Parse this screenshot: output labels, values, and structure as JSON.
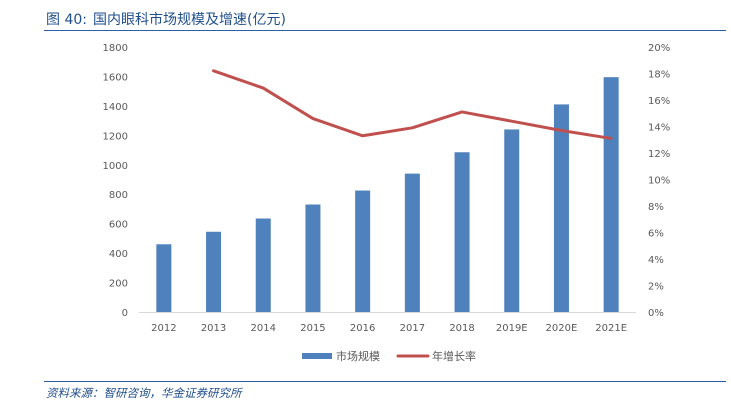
{
  "figure": {
    "number": "图 40:",
    "title": "国内眼科市场规模及增速(亿元)",
    "source": "资料来源：智研咨询，华金证券研究所"
  },
  "colors": {
    "bar": "#4f81bd",
    "line": "#c0504d",
    "axis_text": "#595959",
    "axis_line": "#d9d9d9",
    "title": "#1f4e8c"
  },
  "chart_data": {
    "type": "bar",
    "title": "国内眼科市场规模及增速(亿元)",
    "categories": [
      "2012",
      "2013",
      "2014",
      "2015",
      "2016",
      "2017",
      "2018",
      "2019E",
      "2020E",
      "2021E"
    ],
    "series": [
      {
        "name": "市场规模",
        "type": "bar",
        "axis": "left",
        "values": [
          460,
          545,
          635,
          730,
          825,
          940,
          1085,
          1240,
          1410,
          1595
        ]
      },
      {
        "name": "年增长率",
        "type": "line",
        "axis": "right",
        "values": [
          null,
          18.2,
          16.9,
          14.6,
          13.3,
          13.9,
          15.1,
          14.4,
          13.7,
          13.1
        ]
      }
    ],
    "left_axis": {
      "ylim": [
        0,
        1800
      ],
      "ticks": [
        0,
        200,
        400,
        600,
        800,
        1000,
        1200,
        1400,
        1600,
        1800
      ],
      "tick_labels": [
        "0",
        "200",
        "400",
        "600",
        "800",
        "1000",
        "1200",
        "1400",
        "1600",
        "1800"
      ]
    },
    "right_axis": {
      "ylim": [
        0,
        20
      ],
      "ticks": [
        0,
        2,
        4,
        6,
        8,
        10,
        12,
        14,
        16,
        18,
        20
      ],
      "tick_labels": [
        "0%",
        "2%",
        "4%",
        "6%",
        "8%",
        "10%",
        "12%",
        "14%",
        "16%",
        "18%",
        "20%"
      ]
    },
    "grid": false,
    "legend": "bottom-center"
  }
}
